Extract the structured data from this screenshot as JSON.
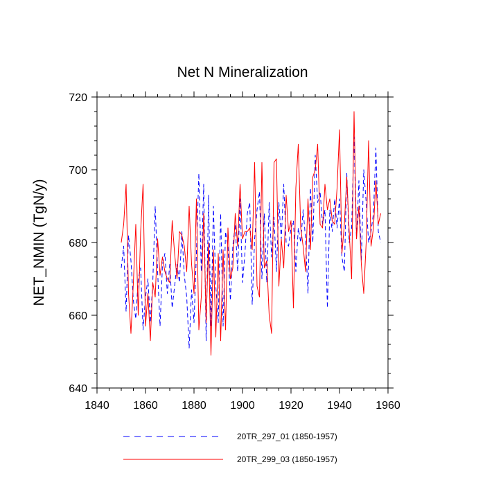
{
  "chart_data": {
    "type": "line",
    "title": "Net N Mineralization",
    "xlabel": "",
    "ylabel": "NET_NMIN  (TgN/y)",
    "xlim": [
      1840,
      1960
    ],
    "ylim": [
      640,
      720
    ],
    "x_ticks": [
      1840,
      1860,
      1880,
      1900,
      1920,
      1940,
      1960
    ],
    "y_ticks": [
      640,
      660,
      680,
      700,
      720
    ],
    "x_minor_step": 5,
    "y_minor_step": 4,
    "x": [
      1850,
      1851,
      1852,
      1853,
      1854,
      1855,
      1856,
      1857,
      1858,
      1859,
      1860,
      1861,
      1862,
      1863,
      1864,
      1865,
      1866,
      1867,
      1868,
      1869,
      1870,
      1871,
      1872,
      1873,
      1874,
      1875,
      1876,
      1877,
      1878,
      1879,
      1880,
      1881,
      1882,
      1883,
      1884,
      1885,
      1886,
      1887,
      1888,
      1889,
      1890,
      1891,
      1892,
      1893,
      1894,
      1895,
      1896,
      1897,
      1898,
      1899,
      1900,
      1901,
      1902,
      1903,
      1904,
      1905,
      1906,
      1907,
      1908,
      1909,
      1910,
      1911,
      1912,
      1913,
      1914,
      1915,
      1916,
      1917,
      1918,
      1919,
      1920,
      1921,
      1922,
      1923,
      1924,
      1925,
      1926,
      1927,
      1928,
      1929,
      1930,
      1931,
      1932,
      1933,
      1934,
      1935,
      1936,
      1937,
      1938,
      1939,
      1940,
      1941,
      1942,
      1943,
      1944,
      1945,
      1946,
      1947,
      1948,
      1949,
      1950,
      1951,
      1952,
      1953,
      1954,
      1955,
      1956,
      1957
    ],
    "series": [
      {
        "name": "20TR_297_01 (1850-1957)",
        "color": "#0000ff",
        "dash": "dashed",
        "values": [
          673,
          679,
          661,
          682,
          675,
          664,
          659,
          670,
          673,
          656,
          665,
          670,
          658,
          669,
          690,
          672,
          657,
          674,
          677,
          666,
          674,
          662,
          668,
          674,
          669,
          683,
          671,
          665,
          651,
          667,
          658,
          677,
          699,
          672,
          696,
          653,
          693,
          657,
          690,
          668,
          658,
          688,
          657,
          683,
          679,
          664,
          679,
          685,
          672,
          692,
          669,
          677,
          688,
          691,
          663,
          681,
          689,
          694,
          670,
          688,
          669,
          691,
          676,
          687,
          672,
          691,
          681,
          696,
          680,
          679,
          684,
          686,
          672,
          684,
          680,
          689,
          681,
          666,
          695,
          680,
          704,
          691,
          694,
          685,
          689,
          662,
          689,
          683,
          692,
          684,
          692,
          676,
          672,
          699,
          680,
          684,
          709,
          681,
          697,
          675,
          700,
          691,
          680,
          683,
          688,
          706,
          683,
          680
        ]
      },
      {
        "name": "20TR_299_03 (1850-1957)",
        "color": "#ff0000",
        "dash": "solid",
        "values": [
          680,
          685,
          696,
          666,
          655,
          669,
          685,
          660,
          683,
          696,
          657,
          666,
          653,
          669,
          665,
          681,
          671,
          676,
          672,
          670,
          669,
          686,
          677,
          670,
          683,
          682,
          679,
          672,
          690,
          674,
          666,
          692,
          656,
          665,
          688,
          658,
          680,
          649,
          678,
          654,
          677,
          653,
          678,
          656,
          684,
          670,
          673,
          688,
          679,
          696,
          681,
          683,
          683,
          684,
          678,
          702,
          668,
          665,
          702,
          673,
          675,
          660,
          655,
          702,
          703,
          668,
          681,
          673,
          693,
          683,
          686,
          662,
          695,
          707,
          684,
          679,
          672,
          692,
          678,
          698,
          700,
          707,
          685,
          684,
          696,
          689,
          692,
          686,
          685,
          695,
          711,
          677,
          685,
          698,
          683,
          670,
          716,
          681,
          690,
          674,
          666,
          680,
          708,
          679,
          684,
          697,
          685,
          688
        ]
      }
    ],
    "legend": {
      "placement": "bottom",
      "entries": [
        "20TR_297_01 (1850-1957)",
        "20TR_299_03 (1850-1957)"
      ]
    },
    "grid": false
  }
}
